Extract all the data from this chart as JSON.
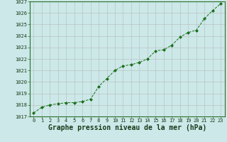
{
  "x": [
    0,
    1,
    2,
    3,
    4,
    5,
    6,
    7,
    8,
    9,
    10,
    11,
    12,
    13,
    14,
    15,
    16,
    17,
    18,
    19,
    20,
    21,
    22,
    23
  ],
  "y": [
    1017.3,
    1017.8,
    1018.0,
    1018.1,
    1018.2,
    1018.2,
    1018.3,
    1018.5,
    1019.6,
    1020.3,
    1021.0,
    1021.4,
    1021.5,
    1021.7,
    1022.0,
    1022.7,
    1022.8,
    1023.2,
    1023.9,
    1024.3,
    1024.5,
    1025.5,
    1026.2,
    1026.8
  ],
  "ylim": [
    1017,
    1027
  ],
  "xlim_min": -0.5,
  "xlim_max": 23.5,
  "yticks": [
    1017,
    1018,
    1019,
    1020,
    1021,
    1022,
    1023,
    1024,
    1025,
    1026,
    1027
  ],
  "xticks": [
    0,
    1,
    2,
    3,
    4,
    5,
    6,
    7,
    8,
    9,
    10,
    11,
    12,
    13,
    14,
    15,
    16,
    17,
    18,
    19,
    20,
    21,
    22,
    23
  ],
  "xlabel": "Graphe pression niveau de la mer (hPa)",
  "line_color": "#1a6e1a",
  "marker": "D",
  "marker_size": 2.0,
  "bg_color": "#cce8e8",
  "grid_color": "#b0b0b0",
  "tick_fontsize": 5.0,
  "xlabel_fontsize": 7.0,
  "spine_color": "#2a6e2a",
  "line_width": 0.7
}
